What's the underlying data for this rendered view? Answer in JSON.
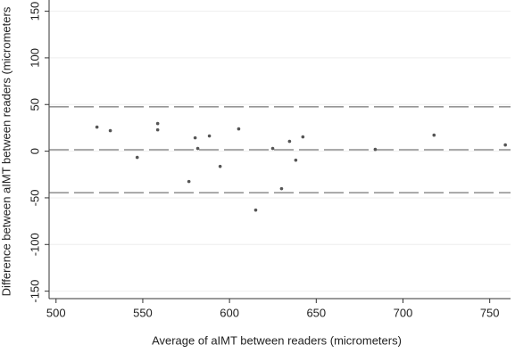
{
  "chart_data": {
    "type": "scatter",
    "xlabel": "Average of aIMT between readers (micrometers)",
    "ylabel": "Difference between aIMT between readers (micrometers",
    "x": [
      523.6,
      531.3,
      546.8,
      558.6,
      558.6,
      576.6,
      580.2,
      581.7,
      588.4,
      594.6,
      605.3,
      615.1,
      624.9,
      630,
      634.6,
      638.2,
      642.3,
      684,
      717.9,
      759
    ],
    "values": [
      25.8,
      22,
      -6.7,
      29.6,
      22.9,
      -32.5,
      14.3,
      2.9,
      16.3,
      -16.3,
      23.9,
      -63.1,
      2.9,
      -40.2,
      10.5,
      -9.6,
      15.3,
      1.9,
      17.2,
      6.7
    ],
    "color": "#555555",
    "reference_lines": [
      47.5,
      1.5,
      -44.5
    ],
    "xlim": [
      496,
      762
    ],
    "xticks": [
      500,
      550,
      600,
      650,
      700,
      750
    ],
    "ylim": [
      -158,
      162
    ],
    "yticks": [
      -150,
      -100,
      -50,
      0,
      50,
      100,
      150
    ],
    "grid": true
  }
}
